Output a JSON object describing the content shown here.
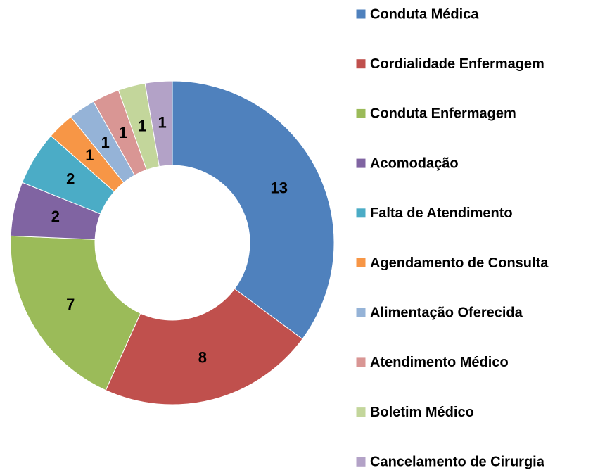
{
  "chart_data": {
    "type": "donut",
    "categories": [
      "Conduta Médica",
      "Cordialidade Enfermagem",
      "Conduta Enfermagem",
      "Acomodação",
      "Falta de Atendimento",
      "Agendamento de Consulta",
      "Alimentação Oferecida",
      "Atendimento Médico",
      "Boletim Médico",
      "Cancelamento de Cirurgia"
    ],
    "values": [
      13,
      8,
      7,
      2,
      2,
      1,
      1,
      1,
      1,
      1
    ],
    "colors": [
      "#4f81bd",
      "#c0504d",
      "#9bbb59",
      "#8064a2",
      "#4bacc6",
      "#f79646",
      "#95b3d7",
      "#d99694",
      "#c3d69b",
      "#b3a2c7"
    ],
    "legend": "right"
  }
}
